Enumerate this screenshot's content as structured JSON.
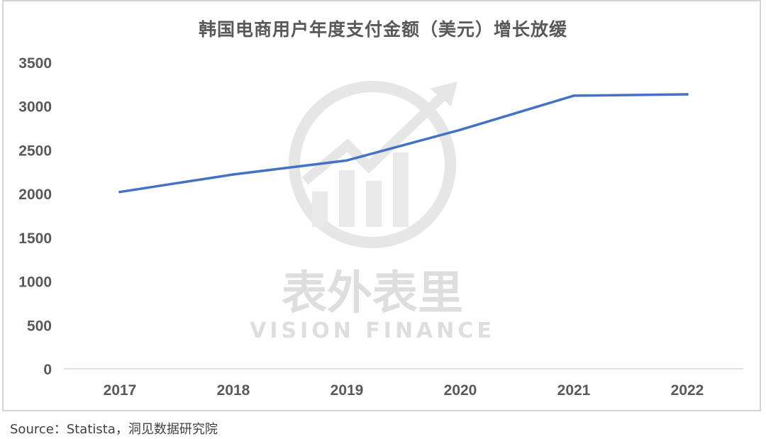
{
  "chart_data": {
    "type": "line",
    "title": "韩国电商用户年度支付金额（美元）增长放缓",
    "categories": [
      "2017",
      "2018",
      "2019",
      "2020",
      "2021",
      "2022"
    ],
    "series": [
      {
        "values": [
          2020,
          2220,
          2380,
          2730,
          3120,
          3135
        ],
        "color": "#4472c4"
      }
    ],
    "y_ticks": [
      "0",
      "500",
      "1000",
      "1500",
      "2000",
      "2500",
      "3000",
      "3500"
    ],
    "ylim": [
      0,
      3500
    ],
    "grid": false,
    "legend": "none"
  },
  "watermark": {
    "cn": "表外表里",
    "en": "VISION FINANCE"
  },
  "source": "Source：Statista，洞见数据研究院"
}
